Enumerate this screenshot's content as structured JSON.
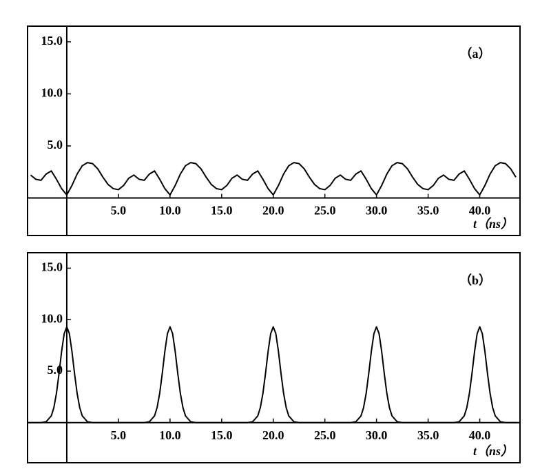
{
  "chart_data": [
    {
      "type": "line",
      "annotation": "（a）",
      "xlabel": "t（ns）",
      "color": "#000000",
      "xlim": [
        -3.8,
        43.9
      ],
      "ylim": [
        -3.6,
        16.5
      ],
      "xticks": [
        {
          "value": 5,
          "label": "5.0"
        },
        {
          "value": 10,
          "label": "10.0"
        },
        {
          "value": 15,
          "label": "15.0"
        },
        {
          "value": 20,
          "label": "20.0"
        },
        {
          "value": 25,
          "label": "25.0"
        },
        {
          "value": 30,
          "label": "30.0"
        },
        {
          "value": 35,
          "label": "35.0"
        },
        {
          "value": 40,
          "label": "40.0"
        }
      ],
      "yticks": [
        {
          "value": 5,
          "label": "5.0"
        },
        {
          "value": 10,
          "label": "10.0"
        },
        {
          "value": 15,
          "label": "15.0"
        }
      ],
      "x": [
        -3.5,
        -3,
        -2.5,
        -2,
        -1.5,
        -1,
        -0.5,
        0,
        0.5,
        1,
        1.5,
        2,
        2.5,
        3,
        3.5,
        4,
        4.5,
        5,
        5.5,
        6,
        6.5,
        7,
        7.5,
        8,
        8.5,
        9,
        9.5,
        10,
        10.5,
        11,
        11.5,
        12,
        12.5,
        13,
        13.5,
        14,
        14.5,
        15,
        15.5,
        16,
        16.5,
        17,
        17.5,
        18,
        18.5,
        19,
        19.5,
        20,
        20.5,
        21,
        21.5,
        22,
        22.5,
        23,
        23.5,
        24,
        24.5,
        25,
        25.5,
        26,
        26.5,
        27,
        27.5,
        28,
        28.5,
        29,
        29.5,
        30,
        30.5,
        31,
        31.5,
        32,
        32.5,
        33,
        33.5,
        34,
        34.5,
        35,
        35.5,
        36,
        36.5,
        37,
        37.5,
        38,
        38.5,
        39,
        39.5,
        40,
        40.5,
        41,
        41.5,
        42,
        42.5,
        43,
        43.5
      ],
      "values": [
        2.2,
        1.8,
        1.7,
        2.3,
        2.6,
        1.8,
        0.9,
        0.3,
        1.2,
        2.3,
        3.1,
        3.4,
        3.3,
        2.8,
        2.0,
        1.3,
        0.9,
        0.8,
        1.2,
        1.9,
        2.2,
        1.8,
        1.7,
        2.3,
        2.6,
        1.8,
        0.9,
        0.3,
        1.2,
        2.3,
        3.1,
        3.4,
        3.3,
        2.8,
        2.0,
        1.3,
        0.9,
        0.8,
        1.2,
        1.9,
        2.2,
        1.8,
        1.7,
        2.3,
        2.6,
        1.8,
        0.9,
        0.3,
        1.2,
        2.3,
        3.1,
        3.4,
        3.3,
        2.8,
        2.0,
        1.3,
        0.9,
        0.8,
        1.2,
        1.9,
        2.2,
        1.8,
        1.7,
        2.3,
        2.6,
        1.8,
        0.9,
        0.3,
        1.2,
        2.3,
        3.1,
        3.4,
        3.3,
        2.8,
        2.0,
        1.3,
        0.9,
        0.8,
        1.2,
        1.9,
        2.2,
        1.8,
        1.7,
        2.3,
        2.6,
        1.8,
        0.9,
        0.3,
        1.2,
        2.3,
        3.1,
        3.4,
        3.3,
        2.8,
        2.0
      ]
    },
    {
      "type": "line",
      "annotation": "（b）",
      "xlabel": "t（ns）",
      "color": "#000000",
      "xlim": [
        -3.8,
        43.9
      ],
      "ylim": [
        -3.9,
        16.5
      ],
      "xticks": [
        {
          "value": 5,
          "label": "5.0"
        },
        {
          "value": 10,
          "label": "10.0"
        },
        {
          "value": 15,
          "label": "15.0"
        },
        {
          "value": 20,
          "label": "20.0"
        },
        {
          "value": 25,
          "label": "25.0"
        },
        {
          "value": 30,
          "label": "30.0"
        },
        {
          "value": 35,
          "label": "35.0"
        },
        {
          "value": 40,
          "label": "40.0"
        }
      ],
      "yticks": [
        {
          "value": 5,
          "label": "5.0"
        },
        {
          "value": 10,
          "label": "10.0"
        },
        {
          "value": 15,
          "label": "15.0"
        }
      ],
      "x": [
        -3.7,
        -2.5,
        -2,
        -1.5,
        -1.25,
        -1,
        -0.75,
        -0.5,
        -0.25,
        0,
        0.25,
        0.5,
        0.75,
        1,
        1.25,
        1.5,
        2,
        2.5,
        7.5,
        8,
        8.5,
        8.75,
        9,
        9.25,
        9.5,
        9.75,
        10,
        10.25,
        10.5,
        10.75,
        11,
        11.25,
        11.5,
        12,
        12.5,
        17.5,
        18,
        18.5,
        18.75,
        19,
        19.25,
        19.5,
        19.75,
        20,
        20.25,
        20.5,
        20.75,
        21,
        21.25,
        21.5,
        22,
        22.5,
        27.5,
        28,
        28.5,
        28.75,
        29,
        29.25,
        29.5,
        29.75,
        30,
        30.25,
        30.5,
        30.75,
        31,
        31.25,
        31.5,
        32,
        32.5,
        37.5,
        38,
        38.5,
        38.75,
        39,
        39.25,
        39.5,
        39.75,
        40,
        40.25,
        40.5,
        40.75,
        41,
        41.25,
        41.5,
        42,
        42.5,
        43.6
      ],
      "values": [
        0,
        0,
        0.08,
        0.65,
        1.46,
        2.85,
        4.78,
        6.92,
        8.64,
        9.3,
        8.64,
        6.92,
        4.78,
        2.85,
        1.46,
        0.65,
        0.08,
        0,
        0,
        0.08,
        0.65,
        1.46,
        2.85,
        4.78,
        6.92,
        8.64,
        9.3,
        8.64,
        6.92,
        4.78,
        2.85,
        1.46,
        0.65,
        0.08,
        0,
        0,
        0.08,
        0.65,
        1.46,
        2.85,
        4.78,
        6.92,
        8.64,
        9.3,
        8.64,
        6.92,
        4.78,
        2.85,
        1.46,
        0.65,
        0.08,
        0,
        0,
        0.08,
        0.65,
        1.46,
        2.85,
        4.78,
        6.92,
        8.64,
        9.3,
        8.64,
        6.92,
        4.78,
        2.85,
        1.46,
        0.65,
        0.08,
        0,
        0,
        0.08,
        0.65,
        1.46,
        2.85,
        4.78,
        6.92,
        8.64,
        9.3,
        8.64,
        6.92,
        4.78,
        2.85,
        1.46,
        0.65,
        0.08,
        0,
        0
      ]
    }
  ]
}
